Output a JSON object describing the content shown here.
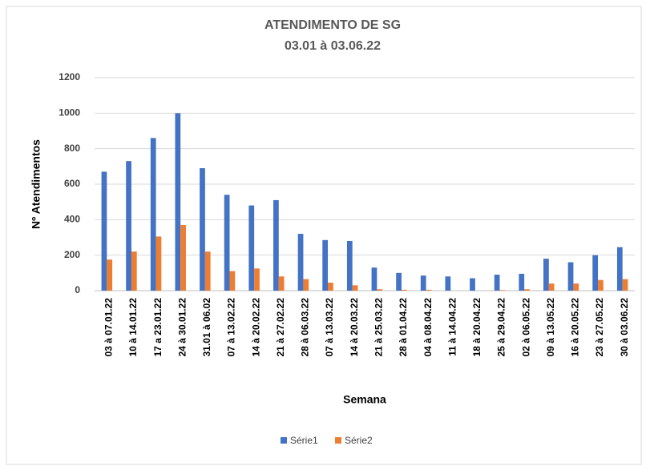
{
  "chart_data": {
    "type": "bar",
    "title": "ATENDIMENTO DE SG",
    "subtitle": "03.01 à 03.06.22",
    "x_label": "Semana",
    "y_label": "Nº Atendimentos",
    "categories": [
      "03 à 07.01.22",
      "10 à 14.01.22",
      "17 a 23.01.22",
      "24 à 30.01.22",
      "31.01 à 06.02",
      "07 à 13.02.22",
      "14 à 20.02.22",
      "21 à 27.02.22",
      "28 à 06.03.22",
      "07 à 13.03.22",
      "14 à 20.03.22",
      "21 à 25.03.22",
      "28 à 01.04.22",
      "04 à 08.04.22",
      "11 à 14.04.22",
      "18 à 20.04.22",
      "25 à 29.04.22",
      "02 à 06.05.22",
      "09 à 13.05.22",
      "16 à 20.05.22",
      "23 à 27.05.22",
      "30 à 03.06.22"
    ],
    "series": [
      {
        "name": "Série1",
        "color": "#4472c4",
        "values": [
          670,
          730,
          860,
          1000,
          690,
          540,
          480,
          510,
          320,
          285,
          280,
          130,
          100,
          85,
          80,
          70,
          90,
          95,
          180,
          160,
          200,
          245
        ]
      },
      {
        "name": "Série2",
        "color": "#ed7d31",
        "values": [
          175,
          220,
          305,
          370,
          220,
          110,
          125,
          80,
          65,
          45,
          30,
          8,
          5,
          5,
          0,
          0,
          3,
          8,
          40,
          40,
          60,
          65
        ]
      }
    ],
    "ylim": [
      0,
      1200
    ],
    "yticks": [
      0,
      200,
      400,
      600,
      800,
      1000,
      1200
    ],
    "grid": true,
    "legend": "bottom"
  }
}
